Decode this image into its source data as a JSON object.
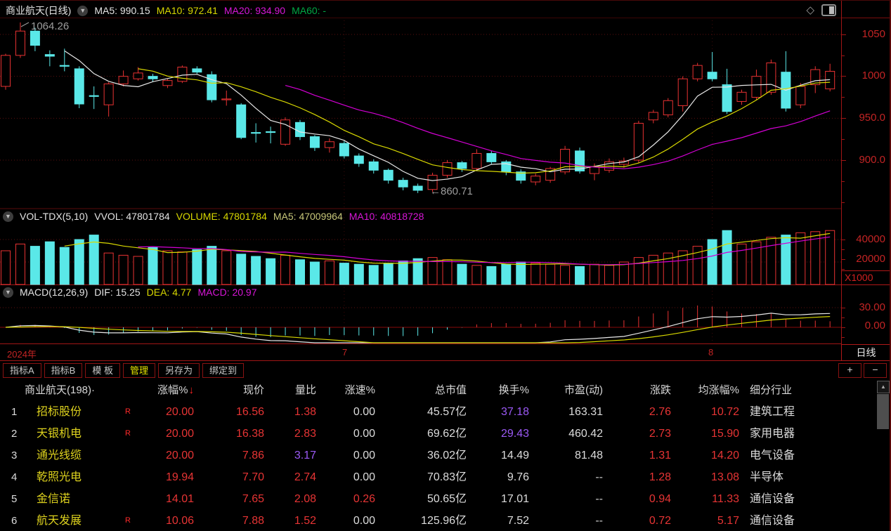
{
  "colors": {
    "up_red": "#e83232",
    "down_cyan": "#5ae8e8",
    "ma5_white": "#e8e8e8",
    "ma10_yellow": "#d8d800",
    "ma20_magenta": "#d400d4",
    "ma60_green": "#00a844",
    "axis_red": "#c32424",
    "table_red": "#e63434",
    "table_purple": "#9b59f5",
    "name_yellow": "#ded21e",
    "active_tab_yellow": "#e8e800"
  },
  "main_header": {
    "title": "商业航天(日线)",
    "ma5": "MA5: 990.15",
    "ma10": "MA10: 972.41",
    "ma20": "MA20: 934.90",
    "ma60": "MA60: -"
  },
  "annotations": {
    "high": "1064.26",
    "low": "←860.71"
  },
  "price_axis": {
    "t1": "1050",
    "t2": "1000",
    "t3": "950.0",
    "t4": "900.0"
  },
  "vol_header": {
    "name": "VOL-TDX(5,10)",
    "vvol": "VVOL: 47801784",
    "volume": "VOLUME: 47801784",
    "ma5": "MA5: 47009964",
    "ma10": "MA10: 40818728"
  },
  "vol_axis": {
    "t1": "40000",
    "t2": "20000",
    "unit": "X1000"
  },
  "macd_header": {
    "name": "MACD(12,26,9)",
    "dif": "DIF: 15.25",
    "dea": "DEA: 4.77",
    "macd": "MACD: 20.97"
  },
  "macd_axis": {
    "t1": "30.00",
    "t2": "0.00"
  },
  "period_box": "日线",
  "timeline": {
    "year": "2024年",
    "month7": "7",
    "month8": "8"
  },
  "toolbar": {
    "tab1": "指标A",
    "tab2": "指标B",
    "tab3": "模 板",
    "tab4": "管理",
    "tab5": "另存为",
    "tab6": "绑定到",
    "plus": "+",
    "minus": "−"
  },
  "table": {
    "headers": {
      "board": "商业航天(198)·",
      "chg": "涨幅%",
      "sort": "↓",
      "price": "现价",
      "vr": "量比",
      "spd": "涨速%",
      "cap": "总市值",
      "turn": "换手%",
      "pe": "市盈(动)",
      "diff": "涨跌",
      "avg": "均涨幅%",
      "ind": "细分行业"
    },
    "rows": [
      {
        "rank": "1",
        "name": "招标股份",
        "r": "R",
        "chg": "20.00",
        "price": "16.56",
        "vr": "1.38",
        "spd": "0.00",
        "cap": "45.57亿",
        "turn": "37.18",
        "pe": "163.31",
        "diff": "2.76",
        "avg": "10.72",
        "ind": "建筑工程"
      },
      {
        "rank": "2",
        "name": "天银机电",
        "r": "R",
        "chg": "20.00",
        "price": "16.38",
        "vr": "2.83",
        "spd": "0.00",
        "cap": "69.62亿",
        "turn": "29.43",
        "pe": "460.42",
        "diff": "2.73",
        "avg": "15.90",
        "ind": "家用电器"
      },
      {
        "rank": "3",
        "name": "通光线缆",
        "r": "",
        "chg": "20.00",
        "price": "7.86",
        "vr": "3.17",
        "spd": "0.00",
        "cap": "36.02亿",
        "turn": "14.49",
        "pe": "81.48",
        "diff": "1.31",
        "avg": "14.20",
        "ind": "电气设备"
      },
      {
        "rank": "4",
        "name": "乾照光电",
        "r": "",
        "chg": "19.94",
        "price": "7.70",
        "vr": "2.74",
        "spd": "0.00",
        "cap": "70.83亿",
        "turn": "9.76",
        "pe": "--",
        "diff": "1.28",
        "avg": "13.08",
        "ind": "半导体"
      },
      {
        "rank": "5",
        "name": "金信诺",
        "r": "",
        "chg": "14.01",
        "price": "7.65",
        "vr": "2.08",
        "spd": "0.26",
        "cap": "50.65亿",
        "turn": "17.01",
        "pe": "--",
        "diff": "0.94",
        "avg": "11.33",
        "ind": "通信设备"
      },
      {
        "rank": "6",
        "name": "航天发展",
        "r": "R",
        "chg": "10.06",
        "price": "7.88",
        "vr": "1.52",
        "spd": "0.00",
        "cap": "125.96亿",
        "turn": "7.52",
        "pe": "--",
        "diff": "0.72",
        "avg": "5.17",
        "ind": "通信设备"
      }
    ]
  },
  "chart_data": {
    "type": "candlestick",
    "title": "商业航天 日线",
    "indicators": [
      "MA5/MA10/MA20 on price",
      "VOL-TDX(5,10)",
      "MACD(12,26,9)"
    ],
    "price_gridlines": [
      1050,
      1000,
      950,
      900
    ],
    "vol_gridlines": [
      40000,
      20000
    ],
    "macd_gridline": 30,
    "high_annotation": 1064.26,
    "low_annotation": 860.71,
    "month_ticks": [
      {
        "label": "7",
        "index": 23
      },
      {
        "label": "8",
        "index": 48
      }
    ],
    "candles_format": [
      "open",
      "high",
      "low",
      "close",
      "volume_x1000"
    ],
    "candles": [
      [
        988,
        1027,
        984,
        1025,
        30
      ],
      [
        1025,
        1064.26,
        1022,
        1054,
        36
      ],
      [
        1054,
        1058,
        1030,
        1037,
        34
      ],
      [
        1026,
        1031,
        1012,
        1024,
        38
      ],
      [
        1013,
        1033,
        1006,
        1012,
        33
      ],
      [
        1009,
        1012,
        962,
        967,
        40
      ],
      [
        977,
        988,
        961,
        976,
        44
      ],
      [
        966,
        993,
        952,
        991,
        28
      ],
      [
        991,
        1007,
        988,
        1000,
        26
      ],
      [
        997,
        1011,
        995,
        1004,
        25
      ],
      [
        1000,
        1003,
        993,
        997,
        33
      ],
      [
        989,
        997,
        986,
        995,
        30
      ],
      [
        994,
        1013,
        992,
        1011,
        29
      ],
      [
        1009,
        1012,
        1003,
        1005,
        31
      ],
      [
        1002,
        1006,
        969,
        972,
        34
      ],
      [
        973,
        983,
        965,
        973,
        30
      ],
      [
        966,
        968,
        925,
        927,
        27
      ],
      [
        933,
        944,
        921,
        932,
        25
      ],
      [
        934,
        940,
        920,
        933,
        23
      ],
      [
        919,
        951,
        917,
        948,
        26
      ],
      [
        945,
        948,
        924,
        928,
        22
      ],
      [
        928,
        930,
        911,
        915,
        20
      ],
      [
        915,
        926,
        909,
        922,
        21
      ],
      [
        920,
        923,
        902,
        905,
        19
      ],
      [
        905,
        908,
        892,
        896,
        18
      ],
      [
        898,
        901,
        884,
        888,
        17
      ],
      [
        888,
        890,
        872,
        876,
        19
      ],
      [
        876,
        879,
        864,
        868,
        21
      ],
      [
        869,
        872,
        860.71,
        864,
        23
      ],
      [
        865,
        885,
        862,
        882,
        24
      ],
      [
        882,
        900,
        879,
        897,
        22
      ],
      [
        897,
        899,
        886,
        890,
        18
      ],
      [
        890,
        913,
        888,
        908,
        17
      ],
      [
        908,
        911,
        895,
        898,
        16
      ],
      [
        898,
        900,
        882,
        886,
        18
      ],
      [
        886,
        889,
        872,
        876,
        20
      ],
      [
        874,
        884,
        870,
        881,
        19
      ],
      [
        876,
        892,
        873,
        890,
        18
      ],
      [
        886,
        917,
        883,
        913,
        17
      ],
      [
        911,
        915,
        884,
        887,
        16
      ],
      [
        884,
        896,
        876,
        892,
        18
      ],
      [
        888,
        902,
        885,
        898,
        17
      ],
      [
        895,
        903,
        891,
        899,
        20
      ],
      [
        900,
        947,
        897,
        944,
        24
      ],
      [
        948,
        960,
        944,
        957,
        26
      ],
      [
        954,
        974,
        951,
        971,
        28
      ],
      [
        965,
        1000,
        958,
        997,
        30
      ],
      [
        997,
        1016,
        994,
        1013,
        34
      ],
      [
        1005,
        1029,
        994,
        997,
        40
      ],
      [
        990,
        1009,
        955,
        958,
        48
      ],
      [
        970,
        984,
        966,
        981,
        36
      ],
      [
        975,
        1008,
        972,
        1000,
        38
      ],
      [
        981,
        1020,
        978,
        1016,
        42
      ],
      [
        1005,
        1030,
        958,
        962,
        44
      ],
      [
        966,
        992,
        962,
        988,
        46
      ],
      [
        990,
        1012,
        980,
        1008,
        47
      ],
      [
        985,
        1015,
        982,
        1006,
        48
      ]
    ]
  }
}
